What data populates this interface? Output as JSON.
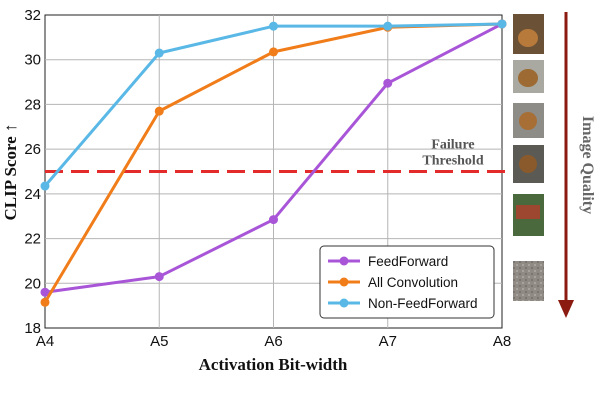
{
  "chart_data": {
    "type": "line",
    "xlabel": "Activation Bit-width",
    "ylabel": "CLIP Score ↑",
    "categories": [
      "A4",
      "A5",
      "A6",
      "A7",
      "A8"
    ],
    "ylim": [
      18,
      32
    ],
    "yticks": [
      18,
      20,
      22,
      24,
      26,
      28,
      30,
      32
    ],
    "grid": true,
    "legend_position": "bottom-right",
    "series": [
      {
        "name": "FeedForward",
        "color": "#a855d8",
        "values": [
          19.6,
          20.3,
          22.85,
          28.95,
          31.6
        ]
      },
      {
        "name": "All Convolution",
        "color": "#f07d1a",
        "values": [
          19.15,
          27.7,
          30.35,
          31.45,
          31.6
        ]
      },
      {
        "name": "Non-FeedForward",
        "color": "#5ab8e6",
        "values": [
          24.35,
          30.3,
          31.5,
          31.5,
          31.6
        ]
      }
    ],
    "threshold": {
      "value": 25,
      "color": "#e32b2b",
      "label_line1": "Failure",
      "label_line2": "Threshold"
    },
    "side_label": "Image Quality",
    "side_arrow_color": "#8b1a10"
  }
}
